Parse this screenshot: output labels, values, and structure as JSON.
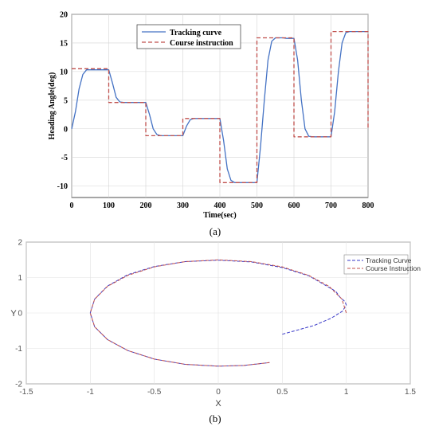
{
  "chart_data": [
    {
      "type": "line",
      "caption": "(a)",
      "xlabel": "Time(sec)",
      "ylabel": "Heading Angle(deg)",
      "xlim": [
        0,
        800
      ],
      "ylim": [
        -12,
        20
      ],
      "xticks": [
        0,
        100,
        200,
        300,
        400,
        500,
        600,
        700,
        800
      ],
      "yticks": [
        -10,
        -5,
        0,
        5,
        10,
        15,
        20
      ],
      "grid": true,
      "legend_position": "top-center",
      "series": [
        {
          "name": "Tracking curve",
          "color": "#4472C4",
          "style": "solid",
          "x": [
            0,
            10,
            20,
            30,
            40,
            50,
            60,
            70,
            80,
            90,
            100,
            110,
            120,
            130,
            140,
            150,
            160,
            170,
            180,
            190,
            200,
            210,
            220,
            230,
            240,
            250,
            260,
            270,
            280,
            290,
            300,
            310,
            320,
            330,
            340,
            350,
            360,
            370,
            380,
            390,
            400,
            410,
            420,
            430,
            440,
            450,
            460,
            470,
            480,
            490,
            500,
            510,
            520,
            530,
            540,
            550,
            560,
            570,
            580,
            590,
            600,
            610,
            620,
            630,
            640,
            650,
            660,
            670,
            680,
            690,
            700,
            710,
            720,
            730,
            740,
            750,
            760,
            770,
            780,
            790,
            800
          ],
          "y": [
            0.0,
            3.0,
            7.0,
            9.5,
            10.3,
            10.3,
            10.3,
            10.3,
            10.3,
            10.3,
            10.3,
            8.0,
            5.5,
            4.7,
            4.6,
            4.6,
            4.6,
            4.6,
            4.6,
            4.6,
            4.6,
            2.5,
            0.0,
            -1.0,
            -1.2,
            -1.2,
            -1.2,
            -1.2,
            -1.2,
            -1.2,
            -1.2,
            0.5,
            1.6,
            1.8,
            1.8,
            1.8,
            1.8,
            1.8,
            1.8,
            1.8,
            1.8,
            -2.0,
            -7.0,
            -9.0,
            -9.4,
            -9.4,
            -9.4,
            -9.4,
            -9.4,
            -9.4,
            -9.4,
            -3.0,
            5.0,
            12.0,
            15.3,
            15.9,
            15.9,
            15.9,
            15.8,
            15.8,
            15.8,
            12.0,
            5.0,
            0.0,
            -1.3,
            -1.4,
            -1.4,
            -1.4,
            -1.4,
            -1.4,
            -1.4,
            3.0,
            10.0,
            15.0,
            16.8,
            17.0,
            17.0,
            17.0,
            17.0,
            17.0,
            17.0
          ]
        },
        {
          "name": "Course instruction",
          "color": "#C0504D",
          "style": "dashed",
          "x": [
            0,
            100,
            100,
            200,
            200,
            300,
            300,
            400,
            400,
            500,
            500,
            600,
            600,
            700,
            700,
            800,
            800
          ],
          "y": [
            10.5,
            10.5,
            4.6,
            4.6,
            -1.2,
            -1.2,
            1.8,
            1.8,
            -9.4,
            -9.4,
            15.9,
            15.9,
            -1.4,
            -1.4,
            17.0,
            17.0,
            0
          ]
        }
      ]
    },
    {
      "type": "line",
      "caption": "(b)",
      "xlabel": "X",
      "ylabel": "Y",
      "xlim": [
        -1.5,
        1.5
      ],
      "ylim": [
        -2,
        2
      ],
      "xticks": [
        -1.5,
        -1,
        -0.5,
        0,
        0.5,
        1,
        1.5
      ],
      "yticks": [
        -2,
        -1,
        0,
        1,
        2
      ],
      "grid": true,
      "legend_position": "top-right",
      "series": [
        {
          "name": "Tracking Curve",
          "color": "#3A3AC8",
          "style": "dashed",
          "x": [
            0.5,
            0.6,
            0.75,
            0.88,
            0.97,
            1.0,
            0.99,
            0.95,
            0.92,
            0.9,
            0.86,
            0.707,
            0.5,
            0.259,
            0.0,
            -0.259,
            -0.5,
            -0.707,
            -0.866,
            -0.966,
            -1.0,
            -0.966,
            -0.866,
            -0.707,
            -0.5,
            -0.259,
            0.0,
            0.2,
            0.4
          ],
          "y": [
            -0.6,
            -0.5,
            -0.35,
            -0.15,
            0.05,
            0.22,
            0.32,
            0.45,
            0.6,
            0.65,
            0.73,
            1.05,
            1.28,
            1.44,
            1.49,
            1.45,
            1.31,
            1.08,
            0.76,
            0.39,
            0.0,
            -0.39,
            -0.75,
            -1.06,
            -1.3,
            -1.45,
            -1.5,
            -1.48,
            -1.4
          ]
        },
        {
          "name": "Course Instruction",
          "color": "#C0504D",
          "style": "dashed",
          "x": [
            1.0,
            0.966,
            0.866,
            0.707,
            0.5,
            0.259,
            0.0,
            -0.259,
            -0.5,
            -0.707,
            -0.866,
            -0.966,
            -1.0,
            -0.966,
            -0.866,
            -0.707,
            -0.5,
            -0.259,
            0.0,
            0.2,
            0.4
          ],
          "y": [
            0.0,
            0.39,
            0.75,
            1.06,
            1.3,
            1.45,
            1.5,
            1.45,
            1.3,
            1.06,
            0.75,
            0.39,
            0.0,
            -0.39,
            -0.75,
            -1.06,
            -1.3,
            -1.45,
            -1.5,
            -1.48,
            -1.4
          ]
        }
      ]
    }
  ]
}
